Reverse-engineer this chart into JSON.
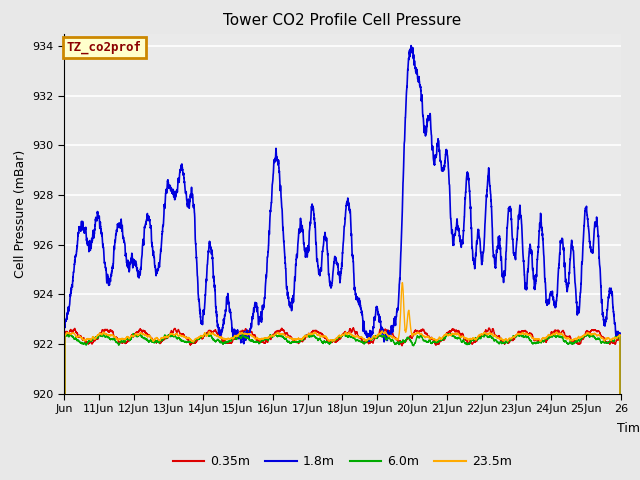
{
  "title": "Tower CO2 Profile Cell Pressure",
  "ylabel": "Cell Pressure (mBar)",
  "xlabel": "Time",
  "ylim": [
    920,
    934.5
  ],
  "yticks": [
    920,
    922,
    924,
    926,
    928,
    930,
    932,
    934
  ],
  "legend_label": "TZ_co2prof",
  "legend_label_color": "#8b0000",
  "legend_box_color": "#ffffcc",
  "legend_box_edge": "#cc8800",
  "series": {
    "0.35m": {
      "color": "#dd0000",
      "lw": 1.0
    },
    "1.8m": {
      "color": "#0000dd",
      "lw": 1.2
    },
    "6.0m": {
      "color": "#00aa00",
      "lw": 1.0
    },
    "23.5m": {
      "color": "#ffaa00",
      "lw": 1.0
    }
  },
  "figsize": [
    6.4,
    4.8
  ],
  "dpi": 100,
  "bg_color": "#e8e8e8",
  "xtick_labels": [
    "Jun",
    "11Jun",
    "12Jun",
    "13Jun",
    "14Jun",
    "15Jun",
    "16Jun",
    "17Jun",
    "18Jun",
    "19Jun",
    "20Jun",
    "21Jun",
    "22Jun",
    "23Jun",
    "24Jun",
    "25Jun",
    "26"
  ],
  "xtick_positions": [
    0,
    1,
    2,
    3,
    4,
    5,
    6,
    7,
    8,
    9,
    10,
    11,
    12,
    13,
    14,
    15,
    16
  ]
}
